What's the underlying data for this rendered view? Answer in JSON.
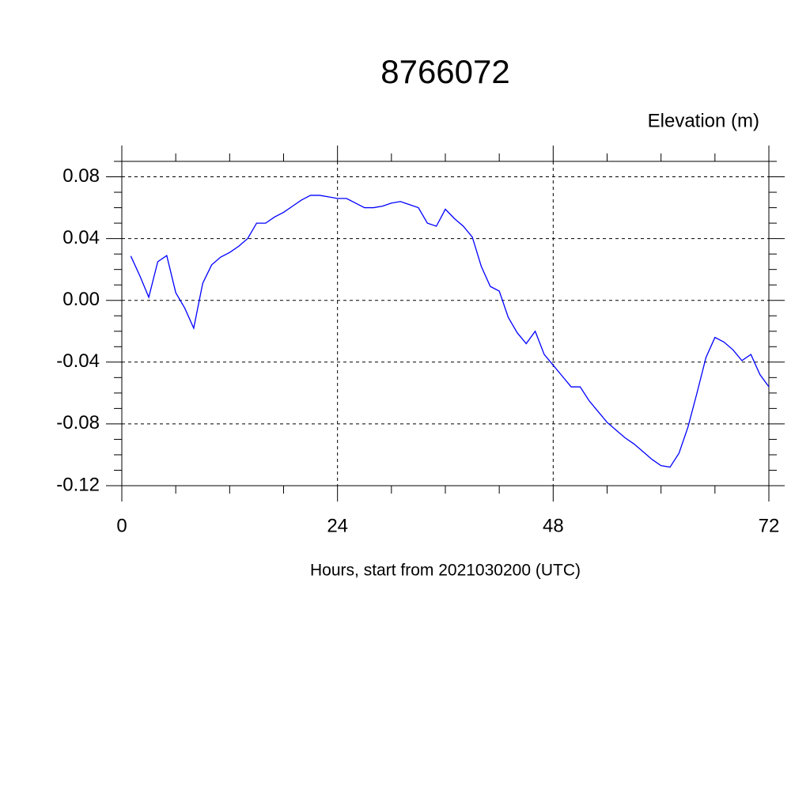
{
  "chart_data": {
    "type": "line",
    "title": "8766072",
    "subtitle": "Elevation (m)",
    "x_label": "Hours, start from 2021030200 (UTC)",
    "x": [
      1,
      2,
      3,
      4,
      5,
      6,
      7,
      8,
      9,
      10,
      11,
      12,
      13,
      14,
      15,
      16,
      17,
      18,
      19,
      20,
      21,
      22,
      23,
      24,
      25,
      26,
      27,
      28,
      29,
      30,
      31,
      32,
      33,
      34,
      35,
      36,
      37,
      38,
      39,
      40,
      41,
      42,
      43,
      44,
      45,
      46,
      47,
      48,
      49,
      50,
      51,
      52,
      53,
      54,
      55,
      56,
      57,
      58,
      59,
      60,
      61,
      62,
      63,
      64,
      65,
      66,
      67,
      68,
      69,
      70,
      71,
      72
    ],
    "series": [
      {
        "color": "#0000ff",
        "values": [
          0.0287,
          0.016,
          0.002,
          0.025,
          0.029,
          0.005,
          -0.005,
          -0.018,
          0.011,
          0.023,
          0.028,
          0.031,
          0.035,
          0.04,
          0.05,
          0.05,
          0.054,
          0.057,
          0.061,
          0.065,
          0.068,
          0.068,
          0.067,
          0.066,
          0.066,
          0.063,
          0.06,
          0.06,
          0.061,
          0.063,
          0.064,
          0.062,
          0.06,
          0.05,
          0.048,
          0.059,
          0.053,
          0.048,
          0.041,
          0.022,
          0.009,
          0.006,
          -0.011,
          -0.021,
          -0.028,
          -0.02,
          -0.035,
          -0.042,
          -0.049,
          -0.056,
          -0.056,
          -0.065,
          -0.072,
          -0.079,
          -0.084,
          -0.089,
          -0.093,
          -0.098,
          -0.103,
          -0.107,
          -0.108,
          -0.099,
          -0.082,
          -0.06,
          -0.037,
          -0.024,
          -0.027,
          -0.032,
          -0.039,
          -0.035,
          -0.048,
          -0.056
        ]
      }
    ],
    "xlim": [
      0,
      72
    ],
    "xticks": [
      0,
      24,
      48,
      72
    ],
    "ylim": [
      -0.12,
      0.09
    ],
    "yticks": [
      0.08,
      0.04,
      {
        "value": 0,
        "label": "0.00"
      },
      -0.04,
      -0.08,
      -0.12
    ],
    "grid": true
  }
}
